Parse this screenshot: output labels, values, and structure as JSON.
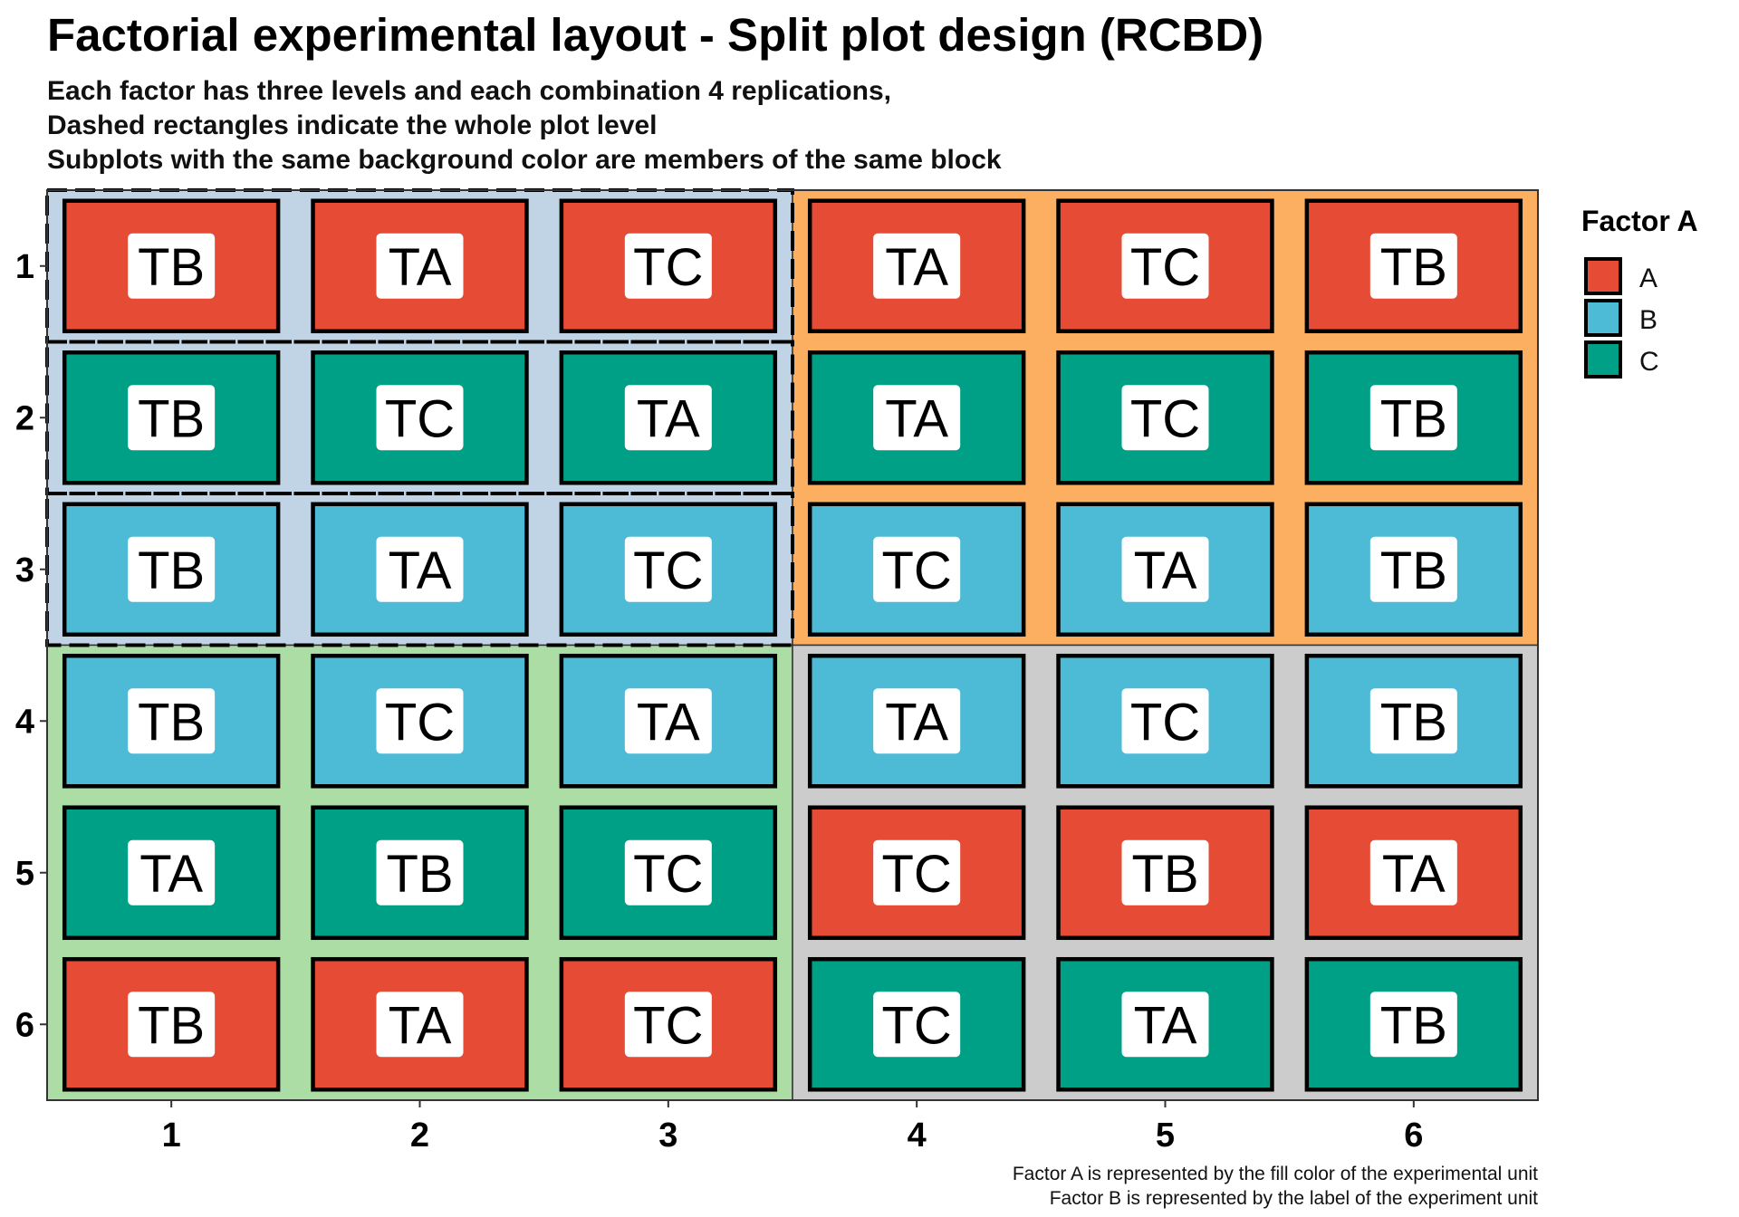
{
  "title": "Factorial experimental layout - Split plot design (RCBD)",
  "subtitle": [
    "Each factor has three levels and each combination 4 replications,",
    "Dashed rectangles indicate the whole plot level",
    "Subplots with the same background color are members of the same block"
  ],
  "caption": [
    "Factor A is represented by the fill color of the experimental unit",
    "Factor B is represented by the label of the experiment unit"
  ],
  "legend": {
    "title": "Factor A",
    "items": [
      {
        "label": "A",
        "color": "#E64B35"
      },
      {
        "label": "B",
        "color": "#4DBBD5"
      },
      {
        "label": "C",
        "color": "#00A087"
      }
    ]
  },
  "chart_data": {
    "type": "heatmap",
    "x_ticks": [
      "1",
      "2",
      "3",
      "4",
      "5",
      "6"
    ],
    "y_ticks": [
      "1",
      "2",
      "3",
      "4",
      "5",
      "6"
    ],
    "xlim": [
      0.5,
      6.5
    ],
    "ylim": [
      0.5,
      6.5
    ],
    "y_reversed": true,
    "blocks": [
      {
        "cols": [
          1,
          3
        ],
        "rows": [
          1,
          3
        ],
        "color": "#C1D4E6"
      },
      {
        "cols": [
          4,
          6
        ],
        "rows": [
          1,
          3
        ],
        "color": "#FDAF61"
      },
      {
        "cols": [
          1,
          3
        ],
        "rows": [
          4,
          6
        ],
        "color": "#ABDDA4"
      },
      {
        "cols": [
          4,
          6
        ],
        "rows": [
          4,
          6
        ],
        "color": "#CCCCCC"
      }
    ],
    "whole_plots": [
      {
        "cols": [
          1,
          3
        ],
        "row": 1
      },
      {
        "cols": [
          1,
          3
        ],
        "row": 2
      },
      {
        "cols": [
          1,
          3
        ],
        "row": 3
      }
    ],
    "units": [
      {
        "row": 1,
        "col": 1,
        "factor_a": "A",
        "factor_b": "TB"
      },
      {
        "row": 1,
        "col": 2,
        "factor_a": "A",
        "factor_b": "TA"
      },
      {
        "row": 1,
        "col": 3,
        "factor_a": "A",
        "factor_b": "TC"
      },
      {
        "row": 1,
        "col": 4,
        "factor_a": "A",
        "factor_b": "TA"
      },
      {
        "row": 1,
        "col": 5,
        "factor_a": "A",
        "factor_b": "TC"
      },
      {
        "row": 1,
        "col": 6,
        "factor_a": "A",
        "factor_b": "TB"
      },
      {
        "row": 2,
        "col": 1,
        "factor_a": "C",
        "factor_b": "TB"
      },
      {
        "row": 2,
        "col": 2,
        "factor_a": "C",
        "factor_b": "TC"
      },
      {
        "row": 2,
        "col": 3,
        "factor_a": "C",
        "factor_b": "TA"
      },
      {
        "row": 2,
        "col": 4,
        "factor_a": "C",
        "factor_b": "TA"
      },
      {
        "row": 2,
        "col": 5,
        "factor_a": "C",
        "factor_b": "TC"
      },
      {
        "row": 2,
        "col": 6,
        "factor_a": "C",
        "factor_b": "TB"
      },
      {
        "row": 3,
        "col": 1,
        "factor_a": "B",
        "factor_b": "TB"
      },
      {
        "row": 3,
        "col": 2,
        "factor_a": "B",
        "factor_b": "TA"
      },
      {
        "row": 3,
        "col": 3,
        "factor_a": "B",
        "factor_b": "TC"
      },
      {
        "row": 3,
        "col": 4,
        "factor_a": "B",
        "factor_b": "TC"
      },
      {
        "row": 3,
        "col": 5,
        "factor_a": "B",
        "factor_b": "TA"
      },
      {
        "row": 3,
        "col": 6,
        "factor_a": "B",
        "factor_b": "TB"
      },
      {
        "row": 4,
        "col": 1,
        "factor_a": "B",
        "factor_b": "TB"
      },
      {
        "row": 4,
        "col": 2,
        "factor_a": "B",
        "factor_b": "TC"
      },
      {
        "row": 4,
        "col": 3,
        "factor_a": "B",
        "factor_b": "TA"
      },
      {
        "row": 4,
        "col": 4,
        "factor_a": "B",
        "factor_b": "TA"
      },
      {
        "row": 4,
        "col": 5,
        "factor_a": "B",
        "factor_b": "TC"
      },
      {
        "row": 4,
        "col": 6,
        "factor_a": "B",
        "factor_b": "TB"
      },
      {
        "row": 5,
        "col": 1,
        "factor_a": "C",
        "factor_b": "TA"
      },
      {
        "row": 5,
        "col": 2,
        "factor_a": "C",
        "factor_b": "TB"
      },
      {
        "row": 5,
        "col": 3,
        "factor_a": "C",
        "factor_b": "TC"
      },
      {
        "row": 5,
        "col": 4,
        "factor_a": "A",
        "factor_b": "TC"
      },
      {
        "row": 5,
        "col": 5,
        "factor_a": "A",
        "factor_b": "TB"
      },
      {
        "row": 5,
        "col": 6,
        "factor_a": "A",
        "factor_b": "TA"
      },
      {
        "row": 6,
        "col": 1,
        "factor_a": "A",
        "factor_b": "TB"
      },
      {
        "row": 6,
        "col": 2,
        "factor_a": "A",
        "factor_b": "TA"
      },
      {
        "row": 6,
        "col": 3,
        "factor_a": "A",
        "factor_b": "TC"
      },
      {
        "row": 6,
        "col": 4,
        "factor_a": "C",
        "factor_b": "TC"
      },
      {
        "row": 6,
        "col": 5,
        "factor_a": "C",
        "factor_b": "TA"
      },
      {
        "row": 6,
        "col": 6,
        "factor_a": "C",
        "factor_b": "TB"
      }
    ]
  }
}
